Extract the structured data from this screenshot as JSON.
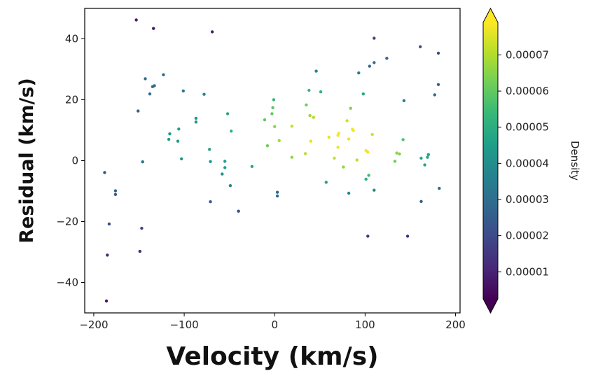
{
  "chart_data": {
    "type": "scatter",
    "title": "",
    "xlabel": "Velocity (km/s)",
    "ylabel": "Residual (km/s)",
    "xlim": [
      -210,
      205
    ],
    "ylim": [
      -50,
      50
    ],
    "xticks": [
      -200,
      -100,
      0,
      100,
      200
    ],
    "yticks": [
      -40,
      -20,
      0,
      20,
      40
    ],
    "xtick_labels": [
      "−200",
      "−100",
      "0",
      "100",
      "200"
    ],
    "ytick_labels": [
      "−40",
      "−20",
      "0",
      "20",
      "40"
    ],
    "grid": false,
    "colorbar": {
      "label": "Density",
      "colormap": "viridis",
      "range": [
        2.5e-06,
        7.9e-05
      ],
      "extend": "both",
      "ticks": [
        1e-05,
        2e-05,
        3e-05,
        4e-05,
        5e-05,
        6e-05,
        7e-05
      ],
      "tick_labels": [
        "0.00001",
        "0.00002",
        "0.00003",
        "0.00004",
        "0.00005",
        "0.00006",
        "0.00007"
      ]
    },
    "points": [
      {
        "x": -153,
        "y": 46.2,
        "density": 8.3e-06
      },
      {
        "x": -134,
        "y": 43.4,
        "density": 8.5e-06
      },
      {
        "x": -69,
        "y": 42.3,
        "density": 8.8e-06
      },
      {
        "x": -151,
        "y": 16.3,
        "density": 2.6e-05
      },
      {
        "x": -143,
        "y": 26.9,
        "density": 2.8e-05
      },
      {
        "x": -138,
        "y": 21.9,
        "density": 3e-05
      },
      {
        "x": -135,
        "y": 24.3,
        "density": 2.9e-05
      },
      {
        "x": -133,
        "y": 24.6,
        "density": 3e-05
      },
      {
        "x": -123,
        "y": 28.2,
        "density": 2.9e-05
      },
      {
        "x": -117,
        "y": 7.0,
        "density": 4.4e-05
      },
      {
        "x": -116,
        "y": 8.8,
        "density": 4.5e-05
      },
      {
        "x": -106,
        "y": 10.4,
        "density": 4.6e-05
      },
      {
        "x": -107,
        "y": 6.4,
        "density": 4.5e-05
      },
      {
        "x": -103,
        "y": 0.6,
        "density": 4.2e-05
      },
      {
        "x": -101,
        "y": 22.9,
        "density": 3.3e-05
      },
      {
        "x": -87,
        "y": 13.9,
        "density": 4.3e-05
      },
      {
        "x": -87,
        "y": 12.7,
        "density": 4.3e-05
      },
      {
        "x": -78,
        "y": 21.8,
        "density": 3.8e-05
      },
      {
        "x": -72,
        "y": 3.7,
        "density": 4.6e-05
      },
      {
        "x": -71,
        "y": -0.3,
        "density": 4.4e-05
      },
      {
        "x": -71,
        "y": -13.5,
        "density": 2.5e-05
      },
      {
        "x": -58,
        "y": -4.4,
        "density": 4.2e-05
      },
      {
        "x": -55,
        "y": -2.3,
        "density": 4.4e-05
      },
      {
        "x": -55,
        "y": -0.2,
        "density": 4.5e-05
      },
      {
        "x": -52,
        "y": 15.4,
        "density": 4.8e-05
      },
      {
        "x": -48,
        "y": 9.7,
        "density": 5.2e-05
      },
      {
        "x": -49,
        "y": -8.2,
        "density": 3.7e-05
      },
      {
        "x": -40,
        "y": -16.6,
        "density": 2e-05
      },
      {
        "x": -25,
        "y": -1.9,
        "density": 4.8e-05
      },
      {
        "x": -11,
        "y": 13.4,
        "density": 6e-05
      },
      {
        "x": -8,
        "y": 4.9,
        "density": 6.2e-05
      },
      {
        "x": -3,
        "y": 15.4,
        "density": 6e-05
      },
      {
        "x": -2,
        "y": 17.4,
        "density": 5.9e-05
      },
      {
        "x": -1,
        "y": 20.0,
        "density": 5.2e-05
      },
      {
        "x": 0,
        "y": 11.2,
        "density": 6.6e-05
      },
      {
        "x": 5,
        "y": 6.6,
        "density": 6.8e-05
      },
      {
        "x": 3,
        "y": -10.4,
        "density": 3e-05
      },
      {
        "x": 3,
        "y": -11.6,
        "density": 2.8e-05
      },
      {
        "x": 19,
        "y": 11.3,
        "density": 7.2e-05
      },
      {
        "x": 19,
        "y": 1.1,
        "density": 6.6e-05
      },
      {
        "x": 34,
        "y": 2.3,
        "density": 7.1e-05
      },
      {
        "x": 35,
        "y": 18.3,
        "density": 6.2e-05
      },
      {
        "x": 38,
        "y": 23.1,
        "density": 5.4e-05
      },
      {
        "x": 39,
        "y": 14.8,
        "density": 6.8e-05
      },
      {
        "x": 40,
        "y": 6.4,
        "density": 7.6e-05
      },
      {
        "x": 43,
        "y": 14.2,
        "density": 7e-05
      },
      {
        "x": 46,
        "y": 29.4,
        "density": 3.8e-05
      },
      {
        "x": 51,
        "y": 22.6,
        "density": 5.2e-05
      },
      {
        "x": 57,
        "y": -7.1,
        "density": 4.6e-05
      },
      {
        "x": 60,
        "y": 7.7,
        "density": 7.6e-05
      },
      {
        "x": 66,
        "y": 0.8,
        "density": 7.2e-05
      },
      {
        "x": 70,
        "y": 8.3,
        "density": 7.8e-05
      },
      {
        "x": 70,
        "y": 4.4,
        "density": 7.7e-05
      },
      {
        "x": 71,
        "y": 9.0,
        "density": 7.8e-05
      },
      {
        "x": 76,
        "y": -2.1,
        "density": 6.6e-05
      },
      {
        "x": 80,
        "y": 13.1,
        "density": 7.3e-05
      },
      {
        "x": 82,
        "y": 7.1,
        "density": 7.7e-05
      },
      {
        "x": 82,
        "y": -10.7,
        "density": 3.8e-05
      },
      {
        "x": 84,
        "y": 17.2,
        "density": 6.4e-05
      },
      {
        "x": 86,
        "y": 10.3,
        "density": 7.8e-05
      },
      {
        "x": 87,
        "y": 9.9,
        "density": 7.8e-05
      },
      {
        "x": 91,
        "y": 0.2,
        "density": 7.2e-05
      },
      {
        "x": 93,
        "y": 28.8,
        "density": 3.6e-05
      },
      {
        "x": 98,
        "y": 21.9,
        "density": 4.8e-05
      },
      {
        "x": 101,
        "y": 3.3,
        "density": 7.8e-05
      },
      {
        "x": 103,
        "y": 2.8,
        "density": 7.7e-05
      },
      {
        "x": 104,
        "y": -4.8,
        "density": 5.5e-05
      },
      {
        "x": 101,
        "y": -6.1,
        "density": 5e-05
      },
      {
        "x": 103,
        "y": -24.8,
        "density": 1.4e-05
      },
      {
        "x": 105,
        "y": 31.0,
        "density": 3.1e-05
      },
      {
        "x": 108,
        "y": 8.6,
        "density": 7.4e-05
      },
      {
        "x": 110,
        "y": -9.7,
        "density": 4e-05
      },
      {
        "x": 110,
        "y": 32.2,
        "density": 2.9e-05
      },
      {
        "x": 110,
        "y": 40.2,
        "density": 1.9e-05
      },
      {
        "x": 124,
        "y": 33.6,
        "density": 2.7e-05
      },
      {
        "x": 133,
        "y": -0.2,
        "density": 6.2e-05
      },
      {
        "x": 135,
        "y": 2.5,
        "density": 6.6e-05
      },
      {
        "x": 138,
        "y": 2.2,
        "density": 6.4e-05
      },
      {
        "x": 142,
        "y": 6.9,
        "density": 5.7e-05
      },
      {
        "x": 143,
        "y": 19.7,
        "density": 3.5e-05
      },
      {
        "x": 147,
        "y": -24.8,
        "density": 1.3e-05
      },
      {
        "x": 161,
        "y": 37.4,
        "density": 2.1e-05
      },
      {
        "x": 162,
        "y": 0.8,
        "density": 4.8e-05
      },
      {
        "x": 162,
        "y": -13.4,
        "density": 2.5e-05
      },
      {
        "x": 166,
        "y": -1.4,
        "density": 4.7e-05
      },
      {
        "x": 169,
        "y": 1.1,
        "density": 4.8e-05
      },
      {
        "x": 170,
        "y": 2.0,
        "density": 4.7e-05
      },
      {
        "x": 177,
        "y": 21.6,
        "density": 2.9e-05
      },
      {
        "x": 181,
        "y": 25.0,
        "density": 2.7e-05
      },
      {
        "x": 181,
        "y": 35.3,
        "density": 2.1e-05
      },
      {
        "x": 182,
        "y": -9.1,
        "density": 3e-05
      },
      {
        "x": -188,
        "y": -3.9,
        "density": 2.3e-05
      },
      {
        "x": -176,
        "y": -9.9,
        "density": 2.6e-05
      },
      {
        "x": -176,
        "y": -11.1,
        "density": 2.5e-05
      },
      {
        "x": -183,
        "y": -20.8,
        "density": 2e-05
      },
      {
        "x": -185,
        "y": -31.0,
        "density": 1.1e-05
      },
      {
        "x": -186,
        "y": -46.1,
        "density": 7e-06
      },
      {
        "x": -147,
        "y": -22.2,
        "density": 1.9e-05
      },
      {
        "x": -149,
        "y": -29.8,
        "density": 1.2e-05
      },
      {
        "x": -146,
        "y": -0.4,
        "density": 3.2e-05
      }
    ]
  }
}
